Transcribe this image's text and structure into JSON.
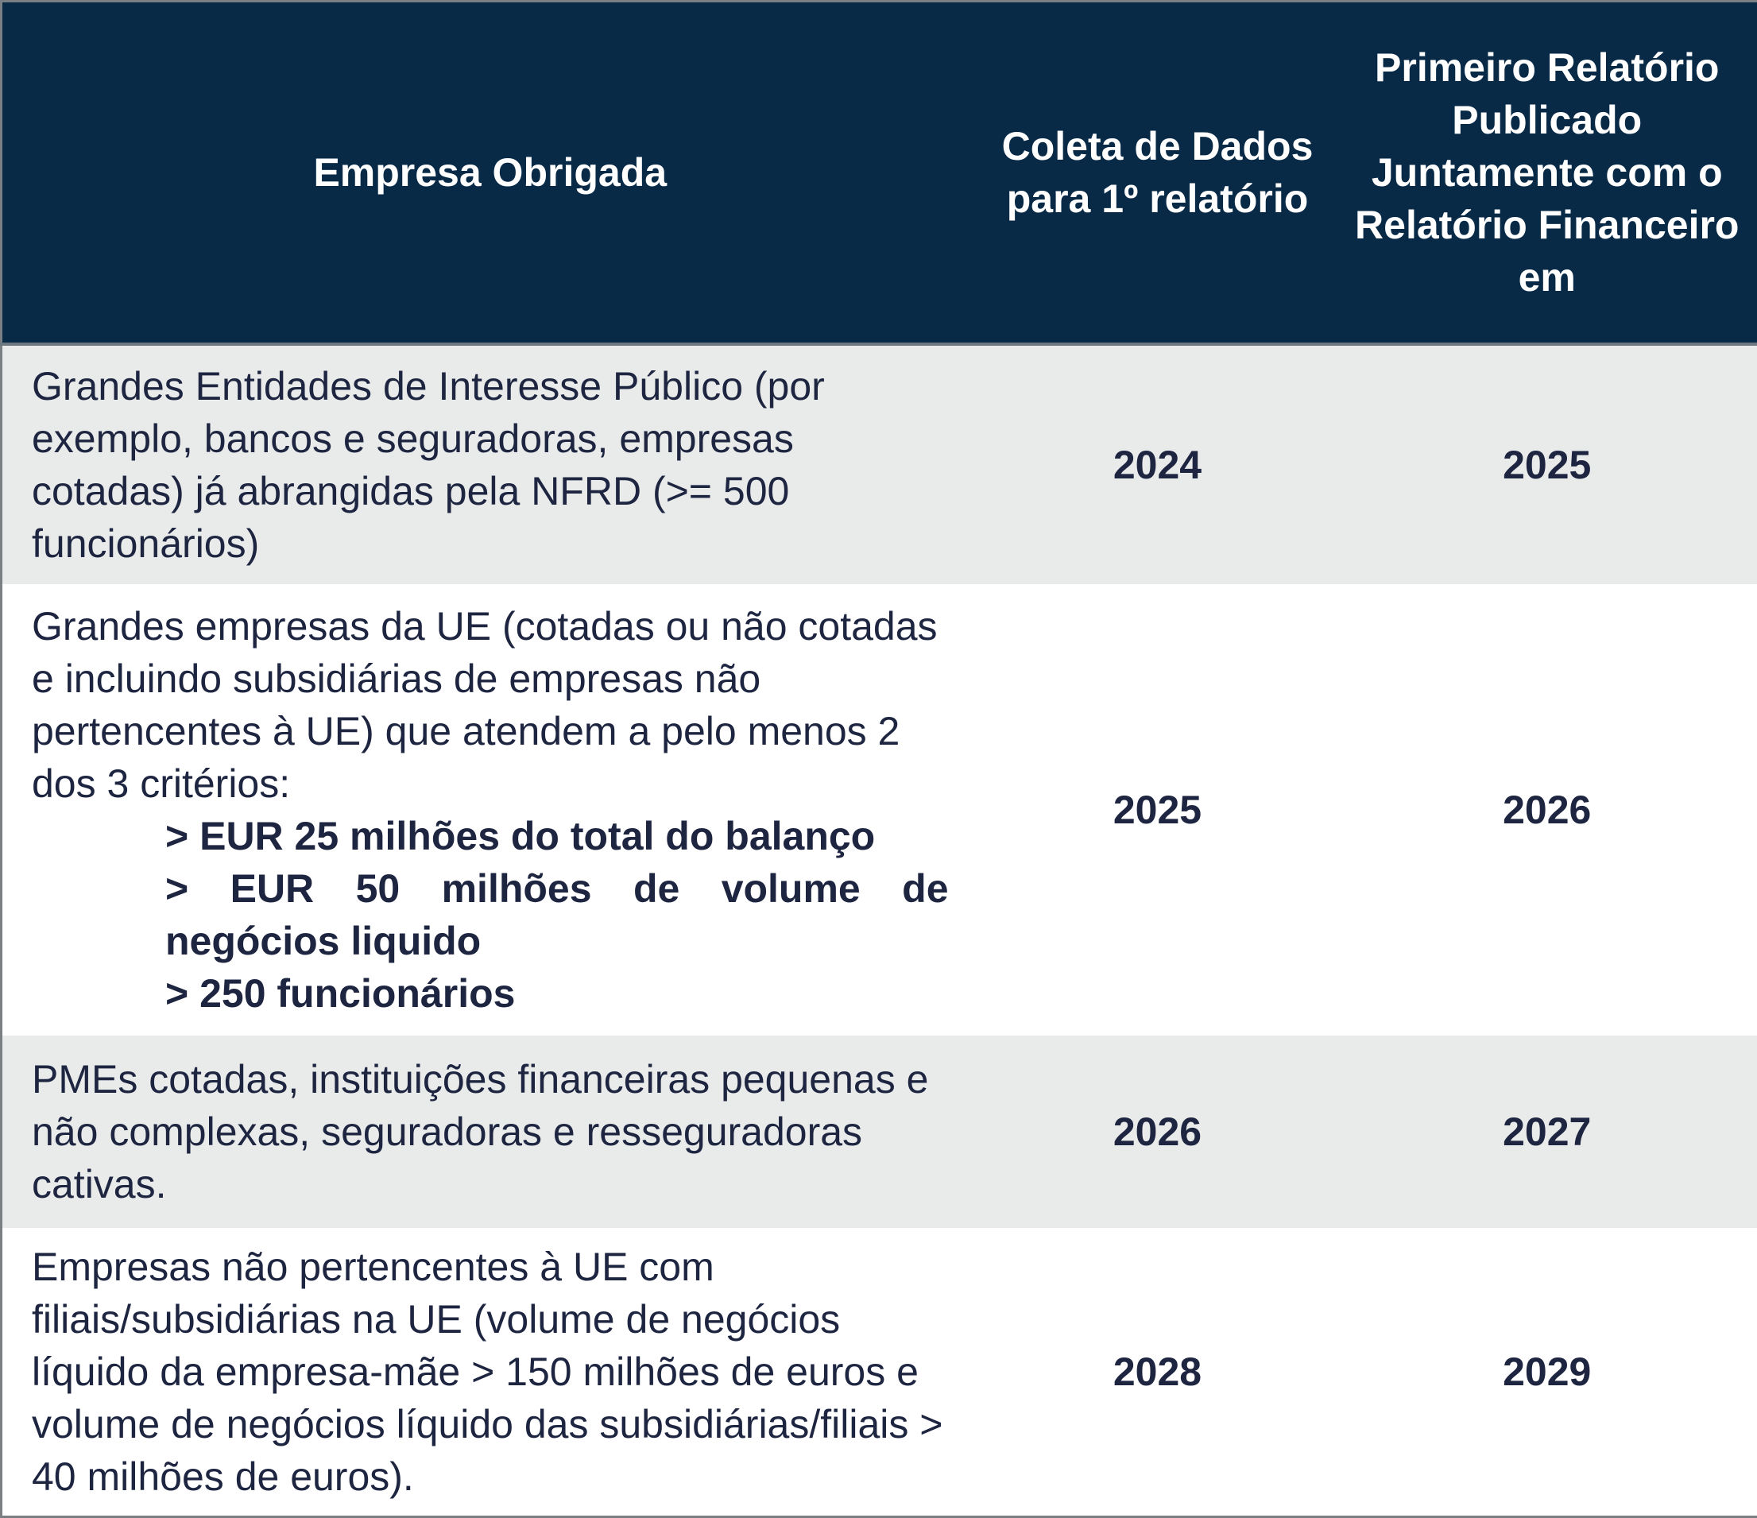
{
  "table": {
    "header": [
      "Empresa Obrigada",
      "Coleta de Dados para 1º relatório",
      "Primeiro Relatório Publicado Juntamente com o Relatório Financeiro em"
    ],
    "rows": [
      {
        "company": "Grandes Entidades de Interesse Público (por exemplo, bancos e seguradoras, empresas cotadas) já abrangidas pela NFRD (>= 500 funcionários)",
        "collection": "2024",
        "first_report": "2025"
      },
      {
        "company": "Grandes empresas da UE (cotadas ou não cotadas e incluindo subsidiárias de empresas não pertencentes à UE) que atendem a pelo menos 2 dos 3 critérios:",
        "items": [
          "> EUR 25 milhões do total do balanço",
          "> EUR 50 milhões de volume de negócios liquido",
          "> 250 funcionários"
        ],
        "collection": "2025",
        "first_report": "2026"
      },
      {
        "company": "PMEs cotadas, instituições financeiras pequenas e não complexas, seguradoras e resseguradoras cativas.",
        "collection": "2026",
        "first_report": "2027"
      },
      {
        "company": "Empresas não pertencentes à UE com filiais/subsidiárias na UE (volume de negócios líquido da empresa-mãe > 150 milhões de euros e volume de negócios líquido das subsidiárias/filiais > 40 milhões de euros).",
        "collection": "2028",
        "first_report": "2029"
      }
    ]
  }
}
